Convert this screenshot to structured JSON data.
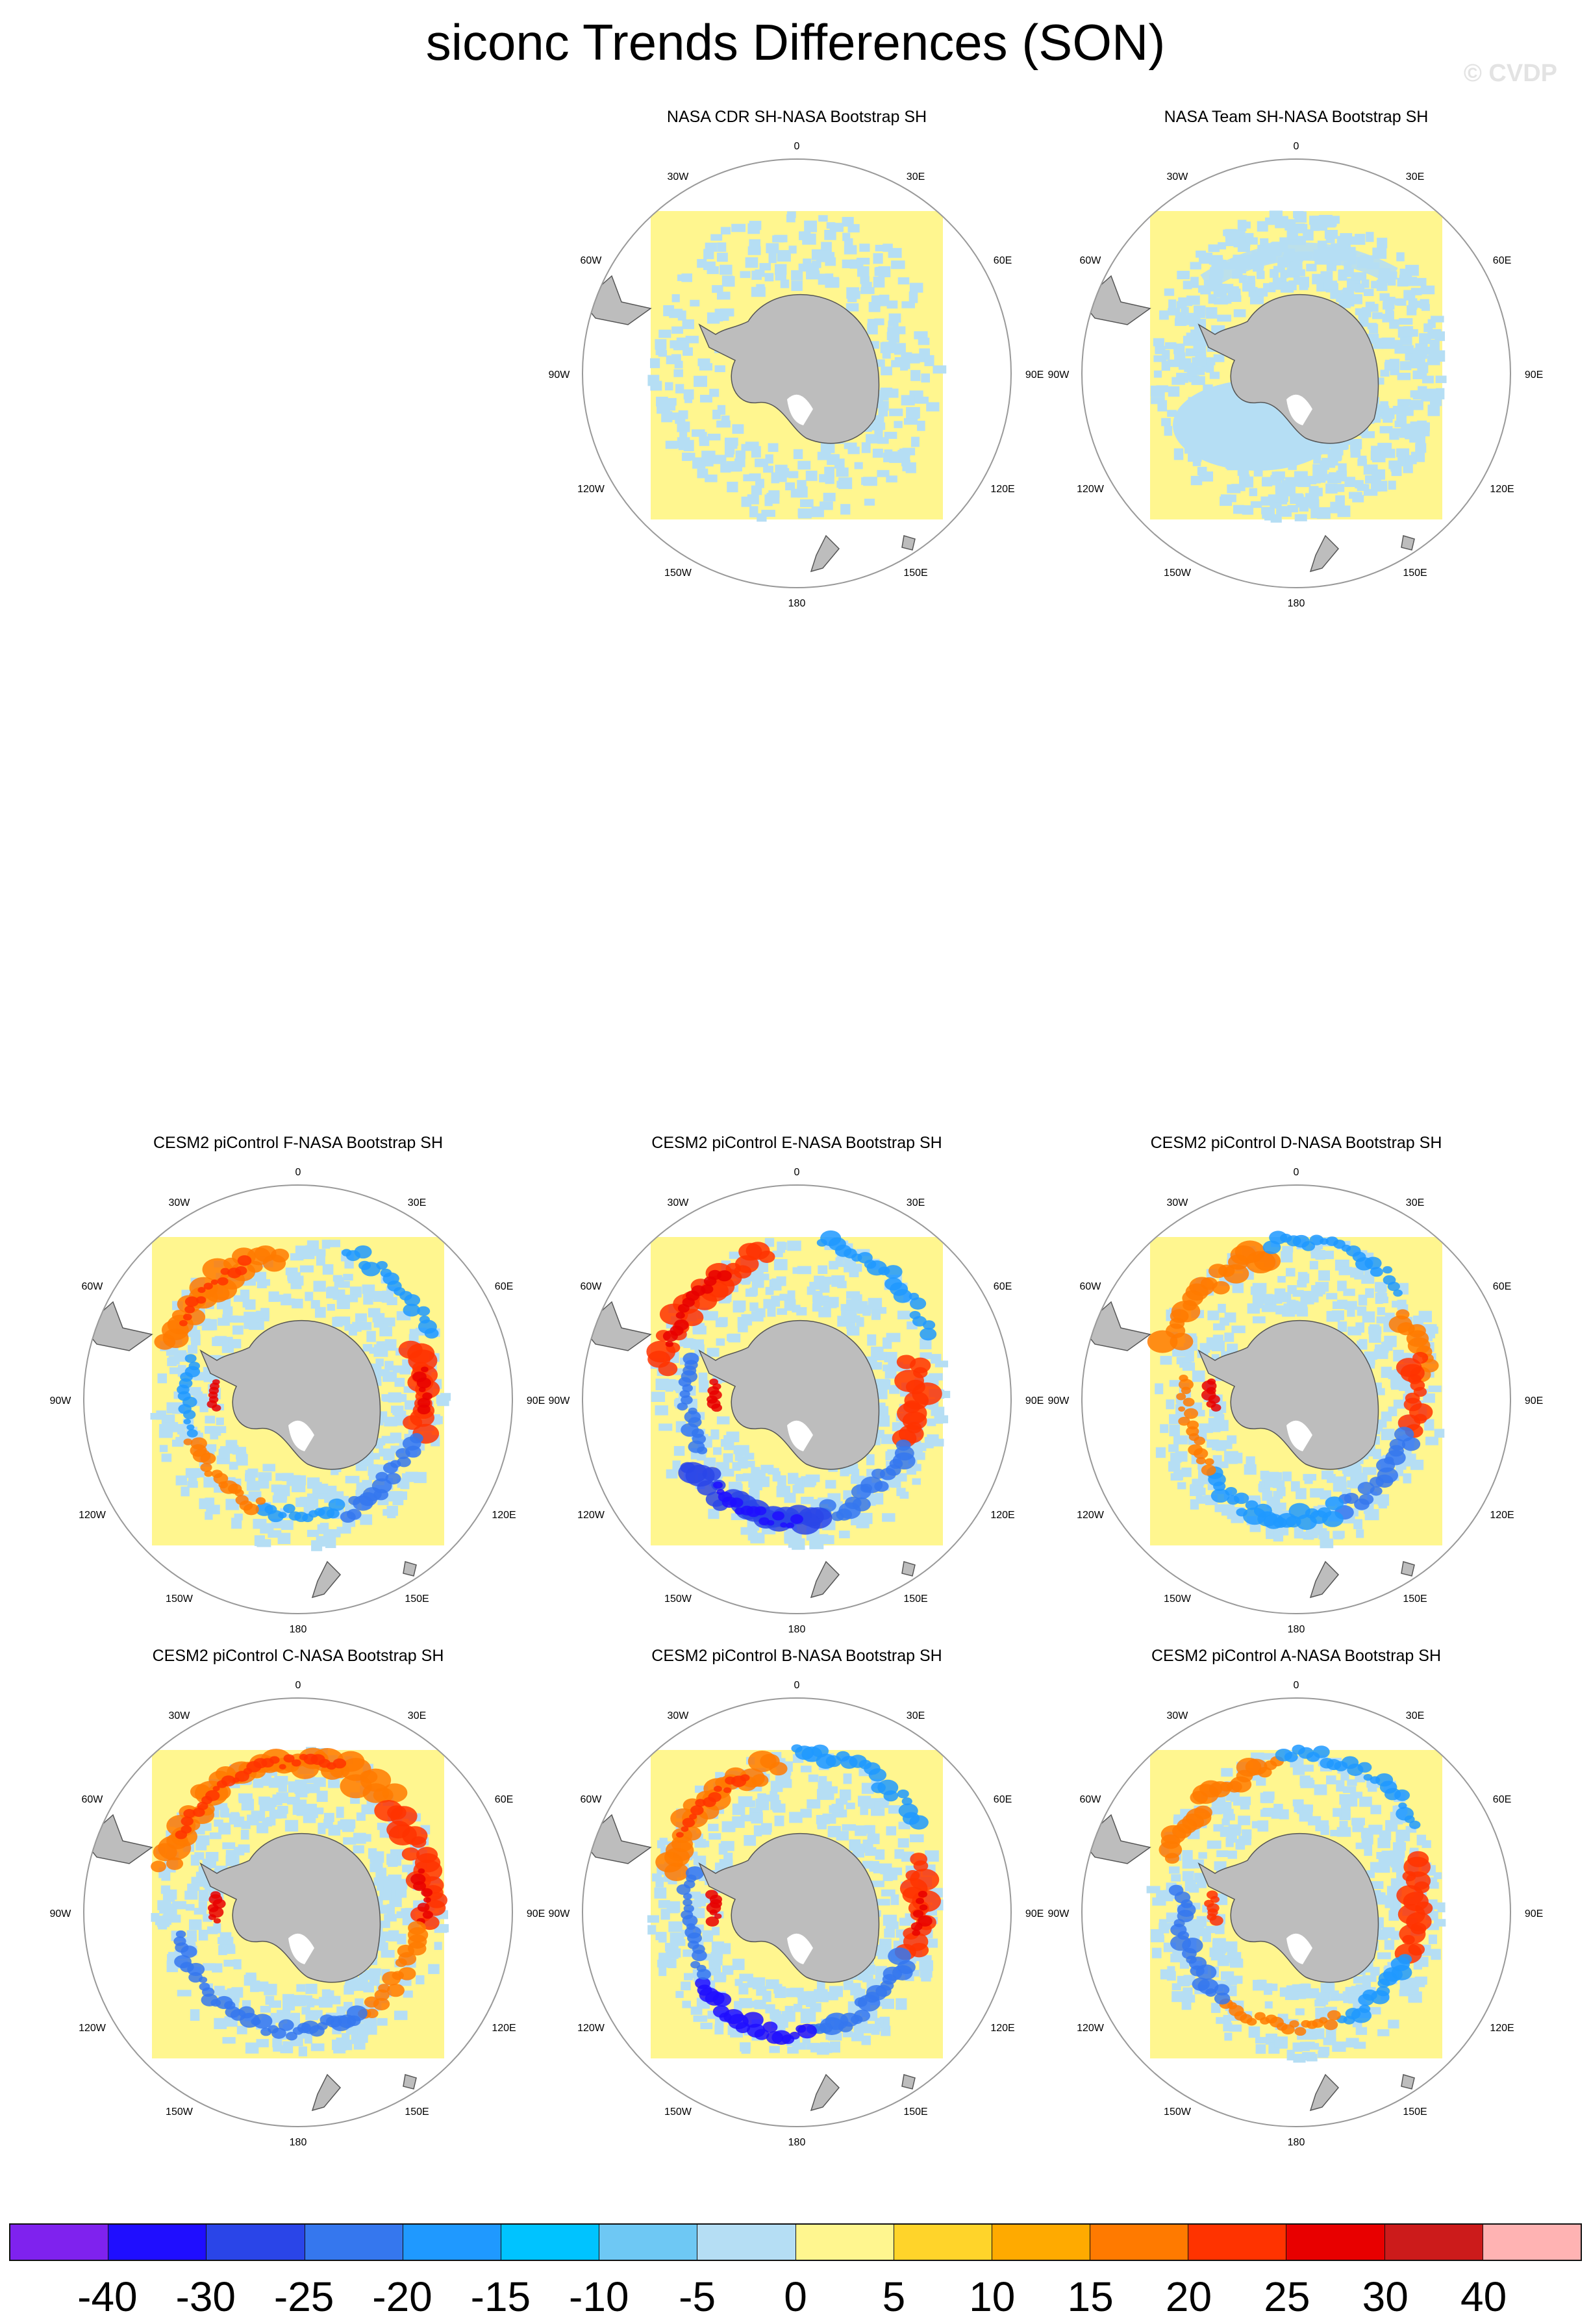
{
  "title": "siconc Trends Differences (SON)",
  "copyright": "© CVDP",
  "longitude_labels": [
    "0",
    "30E",
    "60E",
    "90E",
    "120E",
    "150E",
    "180",
    "150W",
    "120W",
    "90W",
    "60W",
    "30W"
  ],
  "panels": [
    {
      "title": "NASA CDR SH-NASA Bootstrap SH",
      "pattern": "cdr"
    },
    {
      "title": "NASA Team SH-NASA Bootstrap SH",
      "pattern": "team"
    },
    {
      "title": "CESM2 piControl F-NASA Bootstrap SH",
      "pattern": "F"
    },
    {
      "title": "CESM2 piControl E-NASA Bootstrap SH",
      "pattern": "E"
    },
    {
      "title": "CESM2 piControl D-NASA Bootstrap SH",
      "pattern": "D"
    },
    {
      "title": "CESM2 piControl C-NASA Bootstrap SH",
      "pattern": "C"
    },
    {
      "title": "CESM2 piControl B-NASA Bootstrap SH",
      "pattern": "B"
    },
    {
      "title": "CESM2 piControl A-NASA Bootstrap SH",
      "pattern": "A"
    }
  ],
  "colorbar": {
    "colors": [
      "#7f22ee",
      "#1f0eff",
      "#2a45e8",
      "#3577ee",
      "#1f99ff",
      "#00c3ff",
      "#6ec8f4",
      "#b5def4",
      "#fff68f",
      "#ffd42a",
      "#ffaa00",
      "#ff7a00",
      "#ff3300",
      "#e80000",
      "#cc1b1b",
      "#ffb3b3"
    ],
    "labels": [
      "-40",
      "-30",
      "-25",
      "-20",
      "-15",
      "-10",
      "-5",
      "0",
      "5",
      "10",
      "15",
      "20",
      "25",
      "30",
      "40"
    ]
  }
}
